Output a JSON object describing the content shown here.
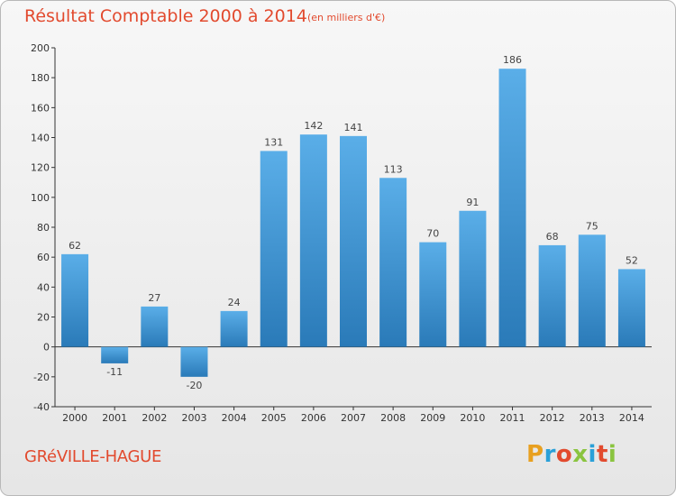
{
  "header": {
    "title": "Résultat Comptable 2000 à 2014",
    "subtitle": "(en milliers d'€)"
  },
  "footer": {
    "commune": "GRéVILLE-HAGUE",
    "logo_text": "Proxiti"
  },
  "colors": {
    "title": "#e24a2e",
    "bar_top": "#5aaee8",
    "bar_bottom": "#2a7ab8",
    "logo_letters": [
      "#e8a020",
      "#2aa0d8",
      "#e24a2e",
      "#8ac43f",
      "#2aa0d8",
      "#e24a2e",
      "#8ac43f"
    ]
  },
  "chart_data": {
    "type": "bar",
    "title": "Résultat Comptable 2000 à 2014",
    "subtitle": "(en milliers d'€)",
    "categories": [
      "2000",
      "2001",
      "2002",
      "2003",
      "2004",
      "2005",
      "2006",
      "2007",
      "2008",
      "2009",
      "2010",
      "2011",
      "2012",
      "2013",
      "2014"
    ],
    "values": [
      62,
      -11,
      27,
      -20,
      24,
      131,
      142,
      141,
      113,
      70,
      91,
      186,
      68,
      75,
      52
    ],
    "value_labels": [
      "62",
      "-11",
      "27",
      "-20",
      "24",
      "131",
      "142",
      "141",
      "113",
      "70",
      "91",
      "186",
      "68",
      "75",
      "52"
    ],
    "yticks": [
      "-40",
      "-20",
      "0",
      "20",
      "40",
      "60",
      "80",
      "100",
      "120",
      "140",
      "160",
      "180",
      "200"
    ],
    "ylim": [
      -40,
      200
    ],
    "xlabel": "",
    "ylabel": "",
    "grid": false,
    "legend": "none"
  }
}
